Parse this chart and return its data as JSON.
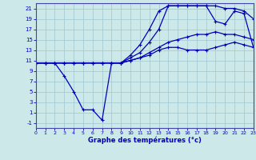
{
  "xlabel": "Graphe des températures (°c)",
  "bg_color": "#cce8e8",
  "grid_color": "#9ec8d0",
  "line_color": "#0000bb",
  "spine_color": "#4444aa",
  "xlim": [
    0,
    23
  ],
  "ylim": [
    -2,
    22
  ],
  "xticks": [
    0,
    1,
    2,
    3,
    4,
    5,
    6,
    7,
    8,
    9,
    10,
    11,
    12,
    13,
    14,
    15,
    16,
    17,
    18,
    19,
    20,
    21,
    22,
    23
  ],
  "yticks": [
    -1,
    1,
    3,
    5,
    7,
    9,
    11,
    13,
    15,
    17,
    19,
    21
  ],
  "curve_min_x": [
    0,
    1,
    2,
    3,
    4,
    5,
    6,
    7,
    8,
    9,
    10,
    11,
    12,
    13,
    14,
    15,
    16,
    17,
    18,
    19,
    20,
    21,
    22,
    23
  ],
  "curve_min_y": [
    10.5,
    10.5,
    10.5,
    8.0,
    5.0,
    1.5,
    1.5,
    -0.5,
    10.5,
    10.5,
    11.0,
    11.5,
    12.0,
    13.0,
    13.5,
    13.5,
    13.0,
    13.0,
    13.0,
    13.5,
    14.0,
    14.5,
    14.0,
    13.5
  ],
  "curve_med_x": [
    0,
    1,
    2,
    3,
    4,
    5,
    6,
    7,
    8,
    9,
    10,
    11,
    12,
    13,
    14,
    15,
    16,
    17,
    18,
    19,
    20,
    21,
    22,
    23
  ],
  "curve_med_y": [
    10.5,
    10.5,
    10.5,
    10.5,
    10.5,
    10.5,
    10.5,
    10.5,
    10.5,
    10.5,
    11.0,
    11.5,
    12.5,
    13.5,
    14.5,
    15.0,
    15.5,
    16.0,
    16.0,
    16.5,
    16.0,
    16.0,
    15.5,
    15.0
  ],
  "curve_max1_x": [
    0,
    1,
    2,
    3,
    4,
    5,
    6,
    7,
    8,
    9,
    10,
    11,
    12,
    13,
    14,
    15,
    16,
    17,
    18,
    19,
    20,
    21,
    22,
    23
  ],
  "curve_max1_y": [
    10.5,
    10.5,
    10.5,
    10.5,
    10.5,
    10.5,
    10.5,
    10.5,
    10.5,
    10.5,
    11.5,
    12.5,
    14.5,
    17.0,
    21.5,
    21.5,
    21.5,
    21.5,
    21.5,
    18.5,
    18.0,
    20.5,
    20.0,
    13.5
  ],
  "curve_max2_x": [
    0,
    1,
    2,
    3,
    4,
    5,
    6,
    7,
    8,
    9,
    10,
    11,
    12,
    13,
    14,
    15,
    16,
    17,
    18,
    19,
    20,
    21,
    22,
    23
  ],
  "curve_max2_y": [
    10.5,
    10.5,
    10.5,
    10.5,
    10.5,
    10.5,
    10.5,
    10.5,
    10.5,
    10.5,
    12.0,
    14.0,
    17.0,
    20.5,
    21.5,
    21.5,
    21.5,
    21.5,
    21.5,
    21.5,
    21.0,
    21.0,
    20.5,
    19.0
  ]
}
